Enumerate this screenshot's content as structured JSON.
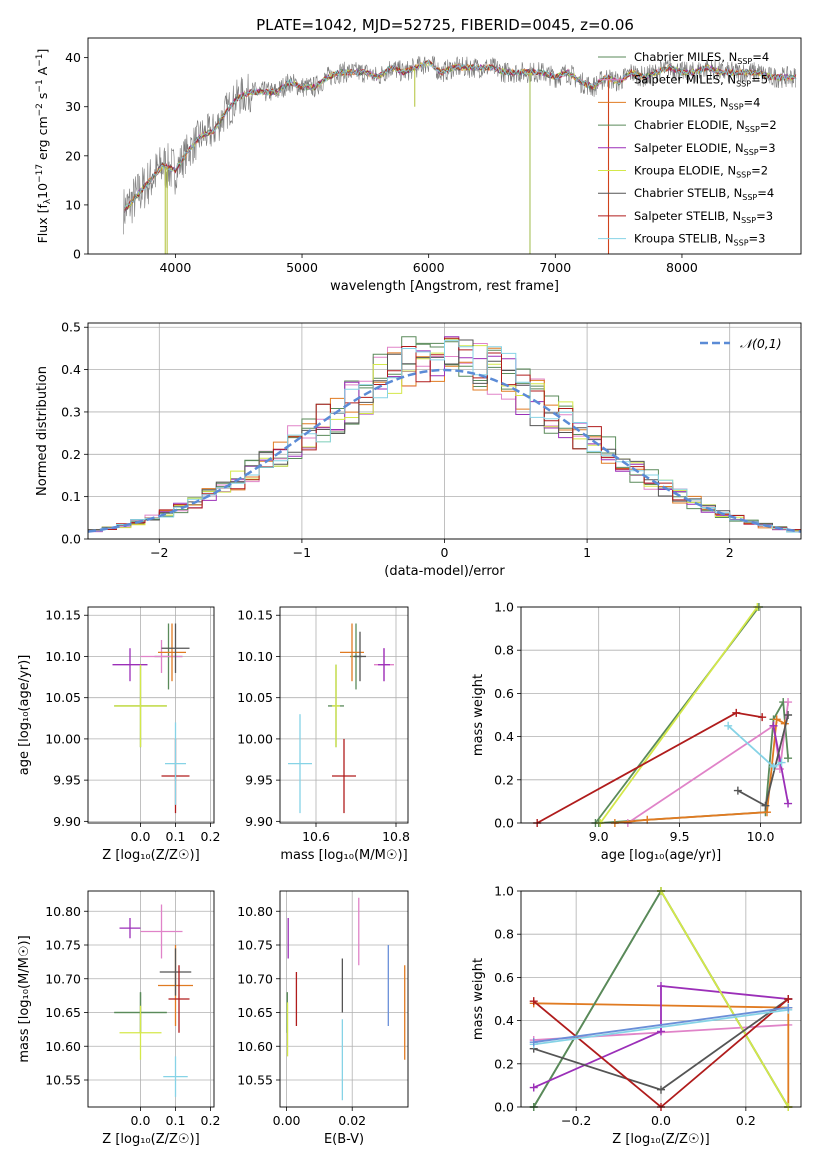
{
  "page_title": "PLATE=1042, MJD=52725, FIBERID=0045, z=0.06",
  "models": [
    {
      "name": "Chabrier MILES",
      "nssp": "4",
      "color": "#5a8a5a"
    },
    {
      "name": "Salpeter MILES",
      "nssp": "5",
      "color": "#e083c8"
    },
    {
      "name": "Kroupa MILES",
      "nssp": "4",
      "color": "#e07b22"
    },
    {
      "name": "Chabrier ELODIE",
      "nssp": "2",
      "color": "#5a8a5a"
    },
    {
      "name": "Salpeter ELODIE",
      "nssp": "3",
      "color": "#9b2fb8"
    },
    {
      "name": "Kroupa ELODIE",
      "nssp": "2",
      "color": "#d4e84a"
    },
    {
      "name": "Chabrier STELIB",
      "nssp": "4",
      "color": "#555555"
    },
    {
      "name": "Salpeter STELIB",
      "nssp": "3",
      "color": "#b01c1c"
    },
    {
      "name": "Kroupa STELIB",
      "nssp": "3",
      "color": "#86d3e6"
    }
  ],
  "chart_data": [
    {
      "id": "spectrum",
      "type": "line",
      "title": "PLATE=1042, MJD=52725, FIBERID=0045, z=0.06",
      "xlabel": "wavelength [Angstrom, rest frame]",
      "ylabel_main": "Flux [f",
      "ylabel_sub": "λ",
      "ylabel_rest": "10",
      "ylabel_exp": "−17",
      "ylabel_tail": " erg cm",
      "ylabel_exp2": "−2",
      "ylabel_tail2": " s",
      "ylabel_exp3": "−1",
      "ylabel_tail3": " A",
      "ylabel_exp4": "−1",
      "ylabel_end": "]",
      "xlim": [
        3310,
        8940
      ],
      "ylim": [
        0,
        44
      ],
      "xticks": [
        4000,
        5000,
        6000,
        7000,
        8000
      ],
      "yticks": [
        0,
        10,
        20,
        30,
        40
      ],
      "legend_prefix": "N",
      "legend_sub": "SSP",
      "continuum_x": [
        3600,
        3700,
        3800,
        3900,
        4000,
        4100,
        4200,
        4300,
        4400,
        4500,
        4600,
        4700,
        4800,
        4900,
        5000,
        5100,
        5200,
        5300,
        5400,
        5500,
        5600,
        5700,
        5800,
        5900,
        6000,
        6100,
        6200,
        6300,
        6400,
        6500,
        6600,
        6700,
        6800,
        6900,
        7000,
        7100,
        7200,
        7300,
        7400,
        7500,
        7600,
        7700,
        7800,
        7900,
        8000,
        8100,
        8200,
        8300,
        8400,
        8500,
        8600,
        8700,
        8800,
        8900
      ],
      "continuum_y": [
        9,
        12,
        15,
        18,
        17,
        21,
        24,
        25,
        29,
        32,
        33,
        33,
        33,
        35,
        34,
        34,
        36,
        37,
        37,
        37,
        36,
        38,
        37,
        38,
        39,
        37,
        38,
        38,
        38,
        38,
        37,
        37,
        37,
        37,
        36,
        37,
        35,
        34,
        36,
        35,
        37,
        36,
        37,
        38,
        37,
        37,
        38,
        37,
        37,
        37,
        37,
        36,
        36,
        36
      ],
      "spikes_x": [
        3920,
        3935,
        5890,
        6800,
        7420
      ],
      "spikes_y": [
        0,
        0,
        30,
        0,
        0
      ]
    },
    {
      "id": "residuals",
      "type": "histogram",
      "xlabel": "(data-model)/error",
      "ylabel": "Normed distribution",
      "xlim": [
        -2.5,
        2.5
      ],
      "ylim": [
        0,
        0.51
      ],
      "xticks": [
        -2,
        -1,
        0,
        1,
        2
      ],
      "yticks": [
        0.0,
        0.1,
        0.2,
        0.3,
        0.4,
        0.5
      ],
      "legend": "𝒩(0,1)",
      "bin_width": 0.1
    },
    {
      "id": "age_vs_Z",
      "type": "errorbar",
      "xlabel": "Z [log₁₀(Z/Z☉)]",
      "ylabel": "age  [log₁₀(age/yr)]",
      "xlim": [
        -0.15,
        0.21
      ],
      "ylim": [
        9.898,
        10.16
      ],
      "xticks": [
        0.0,
        0.1,
        0.2
      ],
      "yticks": [
        9.9,
        9.95,
        10.0,
        10.05,
        10.1,
        10.15
      ],
      "points": [
        {
          "x": 0.08,
          "y": 10.1,
          "xe": 0.08,
          "ye": 0.04
        },
        {
          "x": 0.06,
          "y": 10.1,
          "xe": 0.12,
          "ye": 0.02
        },
        {
          "x": 0.09,
          "y": 10.105,
          "xe": 0.08,
          "ye": 0.035
        },
        {
          "x": 0.0,
          "y": 10.04,
          "xe": 0.15,
          "ye": 0.05
        },
        {
          "x": -0.03,
          "y": 10.09,
          "xe": 0.1,
          "ye": 0.02
        },
        {
          "x": 0.0,
          "y": 10.04,
          "xe": 0.15,
          "ye": 0.05
        },
        {
          "x": 0.1,
          "y": 10.11,
          "xe": 0.08,
          "ye": 0.03
        },
        {
          "x": 0.1,
          "y": 9.955,
          "xe": 0.08,
          "ye": 0.045
        },
        {
          "x": 0.1,
          "y": 9.97,
          "xe": 0.06,
          "ye": 0.05
        }
      ]
    },
    {
      "id": "age_vs_mass",
      "type": "errorbar",
      "xlabel": "mass [log₁₀(M/M☉)]",
      "ylabel": "",
      "xlim": [
        10.51,
        10.83
      ],
      "ylim": [
        9.898,
        10.16
      ],
      "xticks": [
        10.6,
        10.8
      ],
      "yticks": [
        9.9,
        9.95,
        10.0,
        10.05,
        10.1,
        10.15
      ],
      "points": [
        {
          "x": 10.7,
          "y": 10.1,
          "xe": 0.03,
          "ye": 0.04
        },
        {
          "x": 10.77,
          "y": 10.09,
          "xe": 0.05,
          "ye": 0.02
        },
        {
          "x": 10.69,
          "y": 10.105,
          "xe": 0.06,
          "ye": 0.035
        },
        {
          "x": 10.65,
          "y": 10.04,
          "xe": 0.04,
          "ye": 0.05
        },
        {
          "x": 10.77,
          "y": 10.09,
          "xe": 0.03,
          "ye": 0.02
        },
        {
          "x": 10.65,
          "y": 10.04,
          "xe": 0.02,
          "ye": 0.05
        },
        {
          "x": 10.71,
          "y": 10.1,
          "xe": 0.03,
          "ye": 0.03
        },
        {
          "x": 10.67,
          "y": 9.955,
          "xe": 0.06,
          "ye": 0.045
        },
        {
          "x": 10.56,
          "y": 9.97,
          "xe": 0.06,
          "ye": 0.06
        }
      ]
    },
    {
      "id": "mass_weight_vs_age",
      "type": "line",
      "xlabel": "age  [log₁₀(age/yr)]",
      "ylabel": "mass weight",
      "xlim": [
        8.52,
        10.25
      ],
      "ylim": [
        0,
        1
      ],
      "xticks": [
        9.0,
        9.5,
        10.0
      ],
      "yticks": [
        0.0,
        0.2,
        0.4,
        0.6,
        0.8,
        1.0
      ],
      "series": [
        {
          "x": [
            9.0,
            10.03,
            10.08,
            10.14,
            10.17
          ],
          "y": [
            0.0,
            0.05,
            0.48,
            0.56,
            0.3
          ]
        },
        {
          "x": [
            9.18,
            10.08,
            10.12,
            10.17
          ],
          "y": [
            0.0,
            0.45,
            0.25,
            0.56
          ]
        },
        {
          "x": [
            9.1,
            9.3,
            10.04,
            10.1,
            10.15
          ],
          "y": [
            0.0,
            0.015,
            0.05,
            0.48,
            0.46
          ]
        },
        {
          "x": [
            8.98,
            9.99
          ],
          "y": [
            0.0,
            1.0
          ]
        },
        {
          "x": [
            10.08,
            10.17
          ],
          "y": [
            0.45,
            0.09
          ]
        },
        {
          "x": [
            9.01,
            9.98
          ],
          "y": [
            0.0,
            1.0
          ]
        },
        {
          "x": [
            9.86,
            10.03,
            10.17
          ],
          "y": [
            0.15,
            0.08,
            0.5
          ]
        },
        {
          "x": [
            8.62,
            9.85,
            10.01
          ],
          "y": [
            0.0,
            0.51,
            0.49
          ]
        },
        {
          "x": [
            9.8,
            10.08,
            10.13
          ],
          "y": [
            0.45,
            0.26,
            0.28
          ]
        }
      ]
    },
    {
      "id": "mass_vs_Z",
      "type": "errorbar",
      "xlabel": "Z [log₁₀(Z/Z☉)]",
      "ylabel": "mass [log₁₀(M/M☉)]",
      "xlim": [
        -0.15,
        0.21
      ],
      "ylim": [
        10.51,
        10.83
      ],
      "xticks": [
        0.0,
        0.1,
        0.2
      ],
      "yticks": [
        10.55,
        10.6,
        10.65,
        10.7,
        10.75,
        10.8
      ],
      "points": [
        {
          "x": 0.0,
          "y": 10.65,
          "xe": 0.15,
          "ye": 0.03
        },
        {
          "x": 0.06,
          "y": 10.77,
          "xe": 0.12,
          "ye": 0.04
        },
        {
          "x": 0.1,
          "y": 10.69,
          "xe": 0.1,
          "ye": 0.06
        },
        {
          "x": 0.0,
          "y": 10.65,
          "xe": 0.15,
          "ye": 0.03
        },
        {
          "x": -0.03,
          "y": 10.775,
          "xe": 0.06,
          "ye": 0.015
        },
        {
          "x": 0.0,
          "y": 10.62,
          "xe": 0.12,
          "ye": 0.04
        },
        {
          "x": 0.1,
          "y": 10.71,
          "xe": 0.09,
          "ye": 0.035
        },
        {
          "x": 0.11,
          "y": 10.67,
          "xe": 0.06,
          "ye": 0.05
        },
        {
          "x": 0.1,
          "y": 10.555,
          "xe": 0.07,
          "ye": 0.03
        }
      ]
    },
    {
      "id": "mass_vs_ebv",
      "type": "errorbar",
      "xlabel": "E(B-V)",
      "ylabel": "",
      "xlim": [
        -0.002,
        0.037
      ],
      "ylim": [
        10.51,
        10.83
      ],
      "xticks": [
        0.0,
        0.02
      ],
      "yticks": [
        10.55,
        10.6,
        10.65,
        10.7,
        10.75,
        10.8
      ],
      "points": [
        {
          "x": 0.0002,
          "y": 10.65,
          "ye": 0.03
        },
        {
          "x": 0.022,
          "y": 10.77,
          "ye": 0.05
        },
        {
          "x": 0.036,
          "y": 10.65,
          "ye": 0.07
        },
        {
          "x": 0.0002,
          "y": 10.65,
          "ye": 0.03
        },
        {
          "x": 0.0005,
          "y": 10.76,
          "ye": 0.03
        },
        {
          "x": 0.0003,
          "y": 10.625,
          "ye": 0.04
        },
        {
          "x": 0.017,
          "y": 10.69,
          "ye": 0.04
        },
        {
          "x": 0.003,
          "y": 10.67,
          "ye": 0.04
        },
        {
          "x": 0.017,
          "y": 10.58,
          "ye": 0.06
        }
      ],
      "extra": [
        {
          "x": 0.031,
          "y": 10.69,
          "ye": 0.06,
          "color": "#6a8fd8"
        }
      ]
    },
    {
      "id": "mass_weight_vs_Z",
      "type": "line",
      "xlabel": "Z [log₁₀(Z/Z☉)]",
      "ylabel": "mass weight",
      "xlim": [
        -0.33,
        0.33
      ],
      "ylim": [
        0,
        1
      ],
      "xticks": [
        -0.2,
        0.0,
        0.2
      ],
      "yticks": [
        0.0,
        0.2,
        0.4,
        0.6,
        0.8,
        1.0
      ],
      "series": [
        {
          "x": [
            -0.3,
            0.0,
            0.3
          ],
          "y": [
            0.0,
            1.0,
            0.0
          ]
        },
        {
          "x": [
            -0.3,
            0.3
          ],
          "y": [
            0.31,
            0.38
          ]
        },
        {
          "x": [
            -0.3,
            0.3,
            0.3
          ],
          "y": [
            0.48,
            0.46,
            0.0
          ]
        },
        {
          "x": [
            -0.3,
            0.0,
            0.3
          ],
          "y": [
            0.0,
            1.0,
            0.0
          ]
        },
        {
          "x": [
            -0.3,
            0.0,
            0.0,
            0.3
          ],
          "y": [
            0.09,
            0.35,
            0.56,
            0.5
          ]
        },
        {
          "x": [
            0.0,
            0.3
          ],
          "y": [
            1.0,
            0.0
          ]
        },
        {
          "x": [
            -0.3,
            0.0,
            0.3
          ],
          "y": [
            0.27,
            0.08,
            0.5
          ]
        },
        {
          "x": [
            -0.3,
            0.0,
            0.3
          ],
          "y": [
            0.49,
            0.0,
            0.5
          ]
        },
        {
          "x": [
            -0.3,
            0.3
          ],
          "y": [
            0.29,
            0.45
          ]
        }
      ],
      "extra_series": [
        {
          "x": [
            -0.3,
            0.3
          ],
          "y": [
            0.3,
            0.46
          ],
          "color": "#6a8fd8"
        }
      ]
    }
  ]
}
